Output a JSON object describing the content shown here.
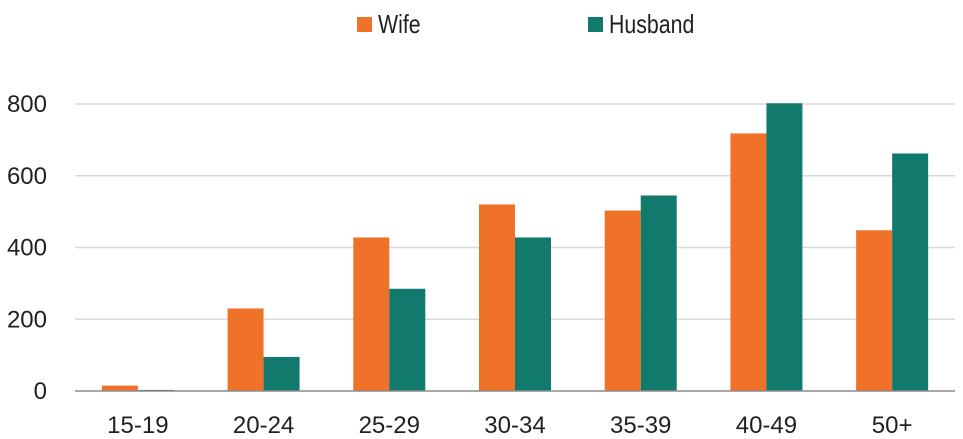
{
  "chart_data": {
    "type": "bar",
    "categories": [
      "15-19",
      "20-24",
      "25-29",
      "30-34",
      "35-39",
      "40-49",
      "50+"
    ],
    "series": [
      {
        "name": "Wife",
        "color": "#f07228",
        "values": [
          15,
          230,
          428,
          520,
          503,
          718,
          448
        ]
      },
      {
        "name": "Husband",
        "color": "#117a6c",
        "values": [
          3,
          95,
          285,
          428,
          545,
          802,
          662
        ]
      }
    ],
    "yticks": [
      0,
      200,
      400,
      600,
      800
    ],
    "ylim": [
      0,
      800
    ],
    "grid": true,
    "legend_position": "top-center",
    "title": "",
    "xlabel": "",
    "ylabel": ""
  }
}
